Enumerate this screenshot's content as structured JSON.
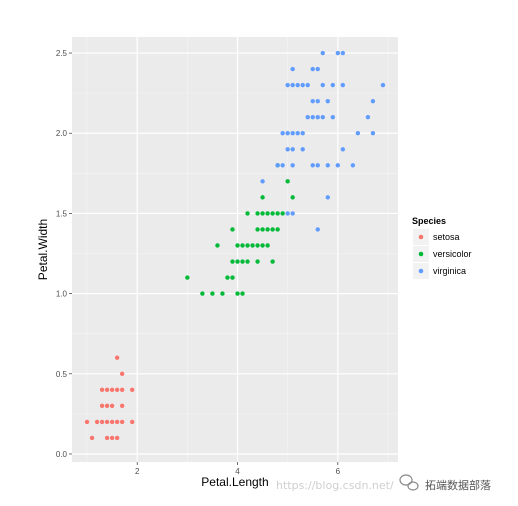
{
  "chart_data": {
    "type": "scatter",
    "title": "",
    "xlabel": "Petal.Length",
    "ylabel": "Petal.Width",
    "xlim": [
      0.7,
      7.2
    ],
    "ylim": [
      -0.05,
      2.6
    ],
    "x_ticks": [
      2,
      4,
      6
    ],
    "x_tick_labels": [
      "2",
      "4",
      "6"
    ],
    "y_ticks": [
      0.0,
      0.5,
      1.0,
      1.5,
      2.0,
      2.5
    ],
    "y_tick_labels": [
      "0.0",
      "0.5",
      "1.0",
      "1.5",
      "2.0",
      "2.5"
    ],
    "grid": true,
    "legend": {
      "title": "Species",
      "position": "right"
    },
    "series": [
      {
        "name": "setosa",
        "color": "#F8766D",
        "points": [
          [
            1.0,
            0.2
          ],
          [
            1.1,
            0.1
          ],
          [
            1.2,
            0.2
          ],
          [
            1.3,
            0.2
          ],
          [
            1.3,
            0.3
          ],
          [
            1.3,
            0.4
          ],
          [
            1.4,
            0.1
          ],
          [
            1.4,
            0.2
          ],
          [
            1.4,
            0.3
          ],
          [
            1.5,
            0.1
          ],
          [
            1.5,
            0.2
          ],
          [
            1.5,
            0.3
          ],
          [
            1.5,
            0.4
          ],
          [
            1.6,
            0.2
          ],
          [
            1.6,
            0.4
          ],
          [
            1.6,
            0.6
          ],
          [
            1.7,
            0.2
          ],
          [
            1.7,
            0.3
          ],
          [
            1.7,
            0.4
          ],
          [
            1.7,
            0.5
          ],
          [
            1.9,
            0.2
          ],
          [
            1.9,
            0.4
          ],
          [
            1.6,
            0.1
          ],
          [
            1.4,
            0.4
          ]
        ]
      },
      {
        "name": "versicolor",
        "color": "#00BA38",
        "points": [
          [
            3.0,
            1.1
          ],
          [
            3.3,
            1.0
          ],
          [
            3.5,
            1.0
          ],
          [
            3.6,
            1.3
          ],
          [
            3.7,
            1.0
          ],
          [
            3.8,
            1.1
          ],
          [
            3.9,
            1.1
          ],
          [
            3.9,
            1.2
          ],
          [
            3.9,
            1.4
          ],
          [
            4.0,
            1.0
          ],
          [
            4.0,
            1.2
          ],
          [
            4.0,
            1.3
          ],
          [
            4.1,
            1.0
          ],
          [
            4.1,
            1.3
          ],
          [
            4.2,
            1.2
          ],
          [
            4.2,
            1.3
          ],
          [
            4.2,
            1.5
          ],
          [
            4.3,
            1.3
          ],
          [
            4.4,
            1.2
          ],
          [
            4.4,
            1.3
          ],
          [
            4.4,
            1.4
          ],
          [
            4.5,
            1.3
          ],
          [
            4.5,
            1.5
          ],
          [
            4.5,
            1.6
          ],
          [
            4.6,
            1.3
          ],
          [
            4.6,
            1.4
          ],
          [
            4.6,
            1.5
          ],
          [
            4.7,
            1.2
          ],
          [
            4.7,
            1.4
          ],
          [
            4.7,
            1.5
          ],
          [
            4.8,
            1.4
          ],
          [
            4.8,
            1.8
          ],
          [
            4.9,
            1.5
          ],
          [
            5.0,
            1.7
          ],
          [
            5.1,
            1.6
          ],
          [
            4.4,
            1.5
          ],
          [
            4.5,
            1.4
          ],
          [
            4.8,
            1.5
          ],
          [
            4.1,
            1.2
          ]
        ]
      },
      {
        "name": "virginica",
        "color": "#619CFF",
        "points": [
          [
            4.5,
            1.7
          ],
          [
            4.8,
            1.8
          ],
          [
            4.9,
            1.8
          ],
          [
            4.9,
            2.0
          ],
          [
            5.0,
            1.5
          ],
          [
            5.0,
            1.9
          ],
          [
            5.0,
            2.0
          ],
          [
            5.1,
            1.5
          ],
          [
            5.1,
            1.8
          ],
          [
            5.1,
            1.9
          ],
          [
            5.1,
            2.0
          ],
          [
            5.1,
            2.3
          ],
          [
            5.1,
            2.4
          ],
          [
            5.2,
            2.0
          ],
          [
            5.2,
            2.3
          ],
          [
            5.3,
            1.9
          ],
          [
            5.3,
            2.3
          ],
          [
            5.4,
            2.1
          ],
          [
            5.4,
            2.3
          ],
          [
            5.5,
            1.8
          ],
          [
            5.5,
            2.1
          ],
          [
            5.5,
            2.2
          ],
          [
            5.6,
            1.4
          ],
          [
            5.6,
            1.8
          ],
          [
            5.6,
            2.1
          ],
          [
            5.6,
            2.2
          ],
          [
            5.6,
            2.4
          ],
          [
            5.7,
            2.1
          ],
          [
            5.7,
            2.3
          ],
          [
            5.7,
            2.5
          ],
          [
            5.8,
            1.6
          ],
          [
            5.8,
            1.8
          ],
          [
            5.8,
            2.2
          ],
          [
            5.9,
            2.1
          ],
          [
            5.9,
            2.3
          ],
          [
            6.0,
            1.8
          ],
          [
            6.0,
            2.5
          ],
          [
            6.1,
            1.9
          ],
          [
            6.1,
            2.3
          ],
          [
            6.1,
            2.5
          ],
          [
            6.3,
            1.8
          ],
          [
            6.4,
            2.0
          ],
          [
            6.6,
            2.1
          ],
          [
            6.7,
            2.0
          ],
          [
            6.7,
            2.2
          ],
          [
            6.9,
            2.3
          ],
          [
            5.0,
            2.3
          ],
          [
            5.5,
            2.4
          ],
          [
            5.3,
            2.0
          ]
        ]
      }
    ]
  },
  "watermark": {
    "url_text": "https://blog.csdn.net/",
    "account_text": "拓端数据部落",
    "icon": "wechat-icon"
  }
}
